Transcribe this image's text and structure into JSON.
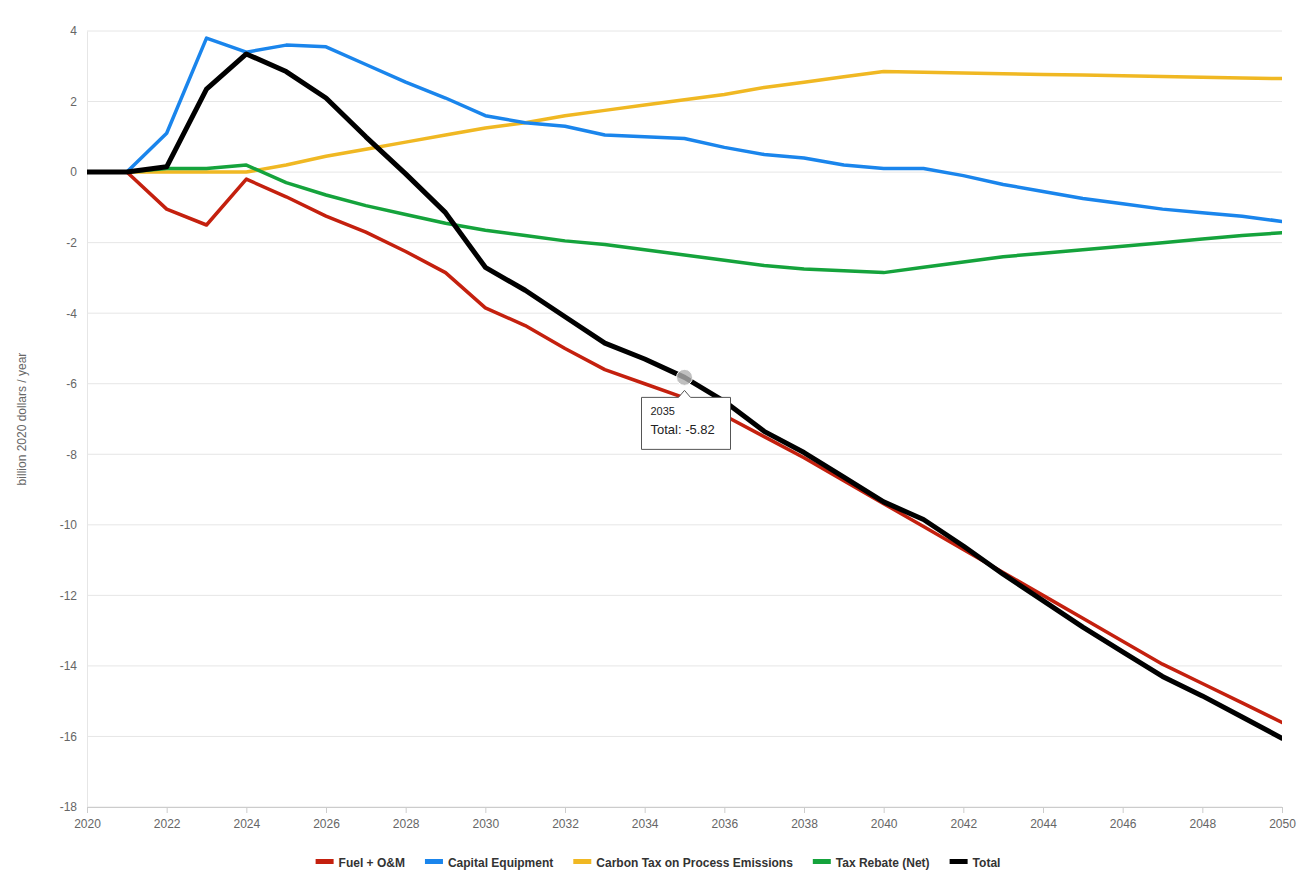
{
  "chart_data": {
    "type": "line",
    "y_label": "billion 2020 dollars / year",
    "x": [
      2020,
      2021,
      2022,
      2023,
      2024,
      2025,
      2026,
      2027,
      2028,
      2029,
      2030,
      2031,
      2032,
      2033,
      2034,
      2035,
      2036,
      2037,
      2038,
      2039,
      2040,
      2041,
      2042,
      2043,
      2044,
      2045,
      2046,
      2047,
      2048,
      2049,
      2050
    ],
    "xlim": [
      2020,
      2050
    ],
    "xticks": [
      2020,
      2022,
      2024,
      2026,
      2028,
      2030,
      2032,
      2034,
      2036,
      2038,
      2040,
      2042,
      2044,
      2046,
      2048,
      2050
    ],
    "ylim": [
      -18,
      4
    ],
    "yticks": [
      -18,
      -16,
      -14,
      -12,
      -10,
      -8,
      -6,
      -4,
      -2,
      0,
      2,
      4
    ],
    "grid": true,
    "legend": "bottom",
    "series": [
      {
        "name": "Fuel + O&M",
        "color": "#c4200e",
        "values": [
          0,
          0,
          -1.05,
          -1.5,
          -0.2,
          -0.7,
          -1.25,
          -1.7,
          -2.25,
          -2.85,
          -3.85,
          -4.35,
          -5.0,
          -5.6,
          -6.0,
          -6.4,
          -6.9,
          -7.5,
          -8.1,
          -8.75,
          -9.4,
          -10.05,
          -10.7,
          -11.35,
          -12.0,
          -12.65,
          -13.3,
          -13.95,
          -14.5,
          -15.05,
          -15.6
        ]
      },
      {
        "name": "Capital Equipment",
        "color": "#1a85ec",
        "values": [
          0,
          0,
          1.1,
          3.8,
          3.4,
          3.6,
          3.55,
          3.05,
          2.55,
          2.1,
          1.6,
          1.4,
          1.3,
          1.05,
          1.0,
          0.95,
          0.7,
          0.5,
          0.4,
          0.2,
          0.1,
          0.1,
          -0.1,
          -0.35,
          -0.55,
          -0.75,
          -0.9,
          -1.05,
          -1.15,
          -1.25,
          -1.4
        ]
      },
      {
        "name": "Carbon Tax on Process Emissions",
        "color": "#f0b823",
        "values": [
          0,
          0,
          0,
          0,
          0,
          0.2,
          0.45,
          0.65,
          0.85,
          1.05,
          1.25,
          1.4,
          1.6,
          1.75,
          1.9,
          2.05,
          2.2,
          2.4,
          2.55,
          2.7,
          2.85,
          2.83,
          2.81,
          2.79,
          2.77,
          2.75,
          2.73,
          2.71,
          2.69,
          2.67,
          2.65
        ]
      },
      {
        "name": "Tax Rebate (Net)",
        "color": "#15a33c",
        "values": [
          0,
          0,
          0.1,
          0.1,
          0.2,
          -0.3,
          -0.65,
          -0.95,
          -1.2,
          -1.45,
          -1.65,
          -1.8,
          -1.95,
          -2.05,
          -2.2,
          -2.35,
          -2.5,
          -2.65,
          -2.75,
          -2.8,
          -2.85,
          -2.7,
          -2.55,
          -2.4,
          -2.3,
          -2.2,
          -2.1,
          -2.0,
          -1.9,
          -1.8,
          -1.72
        ]
      },
      {
        "name": "Total",
        "color": "#000000",
        "values": [
          0,
          0,
          0.15,
          2.35,
          3.35,
          2.85,
          2.1,
          1.0,
          -0.05,
          -1.15,
          -2.7,
          -3.35,
          -4.1,
          -4.85,
          -5.3,
          -5.82,
          -6.5,
          -7.35,
          -7.95,
          -8.65,
          -9.35,
          -9.85,
          -10.6,
          -11.4,
          -12.15,
          -12.9,
          -13.6,
          -14.3,
          -14.85,
          -15.45,
          -16.05
        ]
      }
    ],
    "annotations": [
      {
        "x": 2035,
        "y": -5.82,
        "lines": [
          "2035",
          "Total: -5.82"
        ]
      }
    ]
  }
}
